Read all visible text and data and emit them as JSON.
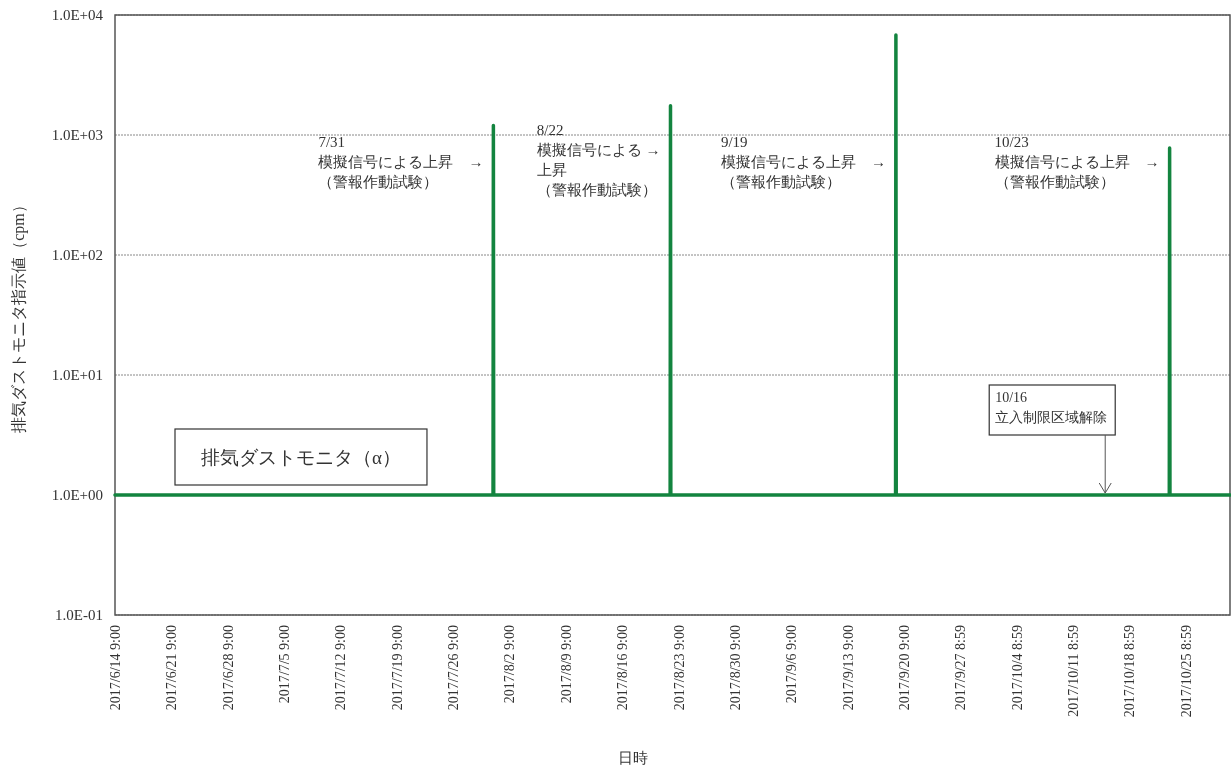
{
  "chart_data": {
    "type": "line",
    "xlabel": "日時",
    "ylabel": "排気ダストモニタ指示値（cpm）",
    "log": "y",
    "grid": "y",
    "legend": "bottom left",
    "xlim": [
      "2017-06-14T09:00",
      "2017-10-30T21:00"
    ],
    "ylim": [
      0.1,
      10000
    ],
    "yticks": [
      {
        "value": 0.1,
        "label": "1.0E-01"
      },
      {
        "value": 1,
        "label": "1.0E+00"
      },
      {
        "value": 10,
        "label": "1.0E+01"
      },
      {
        "value": 100,
        "label": "1.0E+02"
      },
      {
        "value": 1000,
        "label": "1.0E+03"
      },
      {
        "value": 10000,
        "label": "1.0E+04"
      }
    ],
    "xticks": [
      {
        "value": "2017-06-14T09:00",
        "label": "2017/6/14 9:00"
      },
      {
        "value": "2017-06-21T09:00",
        "label": "2017/6/21 9:00"
      },
      {
        "value": "2017-06-28T09:00",
        "label": "2017/6/28 9:00"
      },
      {
        "value": "2017-07-05T09:00",
        "label": "2017/7/5 9:00"
      },
      {
        "value": "2017-07-12T09:00",
        "label": "2017/7/12 9:00"
      },
      {
        "value": "2017-07-19T09:00",
        "label": "2017/7/19 9:00"
      },
      {
        "value": "2017-07-26T09:00",
        "label": "2017/7/26 9:00"
      },
      {
        "value": "2017-08-02T09:00",
        "label": "2017/8/2 9:00"
      },
      {
        "value": "2017-08-09T09:00",
        "label": "2017/8/9 9:00"
      },
      {
        "value": "2017-08-16T09:00",
        "label": "2017/8/16 9:00"
      },
      {
        "value": "2017-08-23T09:00",
        "label": "2017/8/23 9:00"
      },
      {
        "value": "2017-08-30T09:00",
        "label": "2017/8/30 9:00"
      },
      {
        "value": "2017-09-06T09:00",
        "label": "2017/9/6 9:00"
      },
      {
        "value": "2017-09-13T09:00",
        "label": "2017/9/13 9:00"
      },
      {
        "value": "2017-09-20T09:00",
        "label": "2017/9/20 9:00"
      },
      {
        "value": "2017-09-27T08:59",
        "label": "2017/9/27 8:59"
      },
      {
        "value": "2017-10-04T08:59",
        "label": "2017/10/4 8:59"
      },
      {
        "value": "2017-10-11T08:59",
        "label": "2017/10/11 8:59"
      },
      {
        "value": "2017-10-18T08:59",
        "label": "2017/10/18 8:59"
      },
      {
        "value": "2017-10-25T08:59",
        "label": "2017/10/25 8:59"
      }
    ],
    "x": [
      "2017-06-14T09:00",
      "2017-07-31T08:00",
      "2017-07-31T09:00",
      "2017-07-31T10:00",
      "2017-08-22T08:00",
      "2017-08-22T09:00",
      "2017-08-22T10:00",
      "2017-09-19T08:00",
      "2017-09-19T09:00",
      "2017-09-19T10:00",
      "2017-10-23T08:00",
      "2017-10-23T09:00",
      "2017-10-23T10:00",
      "2017-10-30T21:00"
    ],
    "series": [
      {
        "name": "排気ダストモニタ（α）",
        "color": "#13843f",
        "values": [
          1,
          1,
          1200,
          1,
          1,
          1750,
          1,
          1,
          6800,
          1,
          1,
          780,
          1,
          1
        ]
      }
    ],
    "annotations": [
      {
        "text": "7/31\n模擬信号による上昇　→\n（警報作動試験）",
        "x": "2017-07-31T09:00",
        "y": 800
      },
      {
        "text": "8/22\n模擬信号による →\n上昇（警報作動試験）",
        "x": "2017-08-22T09:00",
        "y": 1000
      },
      {
        "text": "9/19\n模擬信号による上昇　→\n（警報作動試験）",
        "x": "2017-09-19T09:00",
        "y": 800
      },
      {
        "text": "10/23\n模擬信号による上昇　→\n（警報作動試験）",
        "x": "2017-10-23T09:00",
        "y": 800
      },
      {
        "text": "10/16\n立入制限区域解除",
        "x": "2017-10-15T09:00",
        "y": 1
      }
    ]
  }
}
